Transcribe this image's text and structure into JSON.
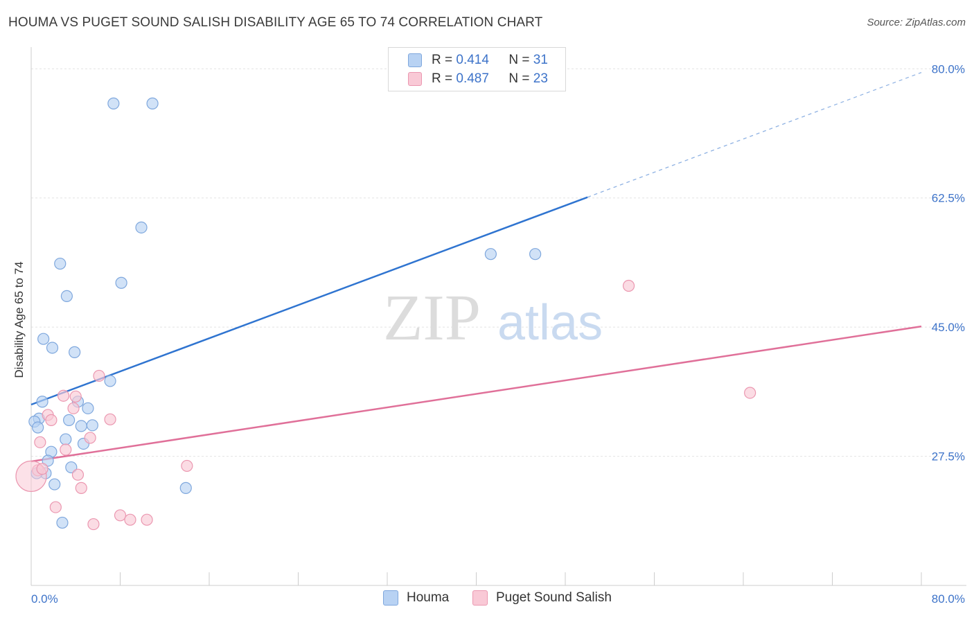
{
  "header": {
    "title": "HOUMA VS PUGET SOUND SALISH DISABILITY AGE 65 TO 74 CORRELATION CHART",
    "source": "Source: ZipAtlas.com"
  },
  "watermark": {
    "zip": "ZIP",
    "atlas": "atlas"
  },
  "legend": {
    "rows": [
      {
        "r_label": "R =",
        "r_value": "0.414",
        "n_label": "N =",
        "n_value": "31"
      },
      {
        "r_label": "R =",
        "r_value": "0.487",
        "n_label": "N =",
        "n_value": "23"
      }
    ]
  },
  "bottom_legend": {
    "houma": "Houma",
    "puget": "Puget Sound Salish"
  },
  "colors": {
    "houma_fill": "#b8d2f3",
    "houma_stroke": "#7ea7dd",
    "houma_line": "#2f74d0",
    "puget_fill": "#f9c9d6",
    "puget_stroke": "#eb97b0",
    "puget_line": "#e07099",
    "tick_text": "#3d73c9",
    "grid": "#e2e2e2"
  },
  "chart_data": {
    "type": "scatter",
    "title": "HOUMA VS PUGET SOUND SALISH DISABILITY AGE 65 TO 74 CORRELATION CHART",
    "xlabel": "",
    "ylabel": "Disability Age 65 to 74",
    "xlim": [
      0,
      80
    ],
    "ylim": [
      10,
      82
    ],
    "x_tick_labels": [
      "0.0%",
      "80.0%"
    ],
    "y_ticks": [
      27.5,
      45.0,
      62.5,
      80.0
    ],
    "y_tick_labels": [
      "27.5%",
      "45.0%",
      "62.5%",
      "80.0%"
    ],
    "grid": true,
    "legend_position": "top-center",
    "series": [
      {
        "name": "Houma",
        "points": [
          [
            7.4,
            75.3
          ],
          [
            10.9,
            75.3
          ],
          [
            9.9,
            58.5
          ],
          [
            2.6,
            53.6
          ],
          [
            8.1,
            51.0
          ],
          [
            3.2,
            49.2
          ],
          [
            1.1,
            43.4
          ],
          [
            1.9,
            42.2
          ],
          [
            3.9,
            41.6
          ],
          [
            7.1,
            37.7
          ],
          [
            1.0,
            34.9
          ],
          [
            4.2,
            34.9
          ],
          [
            5.1,
            34.0
          ],
          [
            0.7,
            32.6
          ],
          [
            3.4,
            32.4
          ],
          [
            0.3,
            32.2
          ],
          [
            0.6,
            31.4
          ],
          [
            4.5,
            31.6
          ],
          [
            5.5,
            31.7
          ],
          [
            3.1,
            29.8
          ],
          [
            4.7,
            29.2
          ],
          [
            1.8,
            28.1
          ],
          [
            1.5,
            26.9
          ],
          [
            3.6,
            26.0
          ],
          [
            1.3,
            25.2
          ],
          [
            0.5,
            25.2
          ],
          [
            2.1,
            23.7
          ],
          [
            13.9,
            23.2
          ],
          [
            2.8,
            18.5
          ],
          [
            41.3,
            54.9
          ],
          [
            45.3,
            54.9
          ]
        ],
        "trend": {
          "x0": 0,
          "y0": 34.5,
          "x1": 50,
          "y1": 62.6,
          "dashed_to_x": 80,
          "dashed_to_y": 79.5
        }
      },
      {
        "name": "Puget Sound Salish",
        "points": [
          [
            6.1,
            38.4
          ],
          [
            2.9,
            35.7
          ],
          [
            4.0,
            35.6
          ],
          [
            3.8,
            34.0
          ],
          [
            1.5,
            33.1
          ],
          [
            1.8,
            32.4
          ],
          [
            7.1,
            32.5
          ],
          [
            5.3,
            30.0
          ],
          [
            0.8,
            29.4
          ],
          [
            3.1,
            28.4
          ],
          [
            14.0,
            26.2
          ],
          [
            0.6,
            25.6
          ],
          [
            0.0,
            24.8
          ],
          [
            4.2,
            25.0
          ],
          [
            4.5,
            23.2
          ],
          [
            2.2,
            20.6
          ],
          [
            8.0,
            19.5
          ],
          [
            8.9,
            18.9
          ],
          [
            10.4,
            18.9
          ],
          [
            5.6,
            18.3
          ],
          [
            53.7,
            50.6
          ],
          [
            64.6,
            36.1
          ],
          [
            1.0,
            25.8
          ]
        ],
        "trend": {
          "x0": 0,
          "y0": 26.8,
          "x1": 80,
          "y1": 45.1
        }
      }
    ]
  }
}
